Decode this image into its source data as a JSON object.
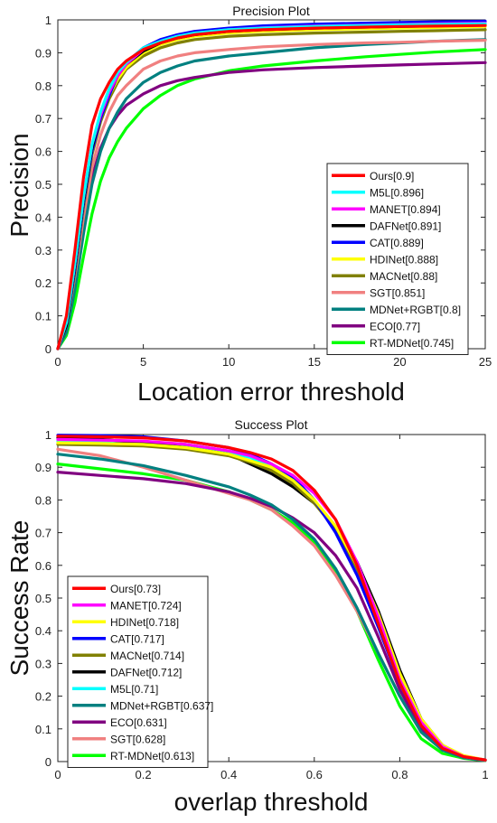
{
  "chart_data": [
    {
      "type": "line",
      "title": "Precision Plot",
      "xlabel": "Location error threshold",
      "ylabel": "Precision",
      "xlim": [
        0,
        25
      ],
      "ylim": [
        0,
        1
      ],
      "xticks": [
        0,
        5,
        10,
        15,
        20,
        25
      ],
      "yticks": [
        0,
        0.1,
        0.2,
        0.3,
        0.4,
        0.5,
        0.6,
        0.7,
        0.8,
        0.9,
        1
      ],
      "grid": false,
      "legend_position": "bottom-right",
      "x": [
        0,
        0.5,
        1,
        1.5,
        2,
        2.5,
        3,
        3.5,
        4,
        5,
        6,
        7,
        8,
        10,
        12,
        15,
        18,
        20,
        22,
        25
      ],
      "series": [
        {
          "name": "Ours[0.9]",
          "color": "#ff0000",
          "values": [
            0,
            0.1,
            0.3,
            0.52,
            0.68,
            0.76,
            0.81,
            0.85,
            0.875,
            0.91,
            0.93,
            0.945,
            0.955,
            0.965,
            0.97,
            0.975,
            0.978,
            0.98,
            0.981,
            0.983
          ]
        },
        {
          "name": "M5L[0.896]",
          "color": "#00ffff",
          "values": [
            0,
            0.08,
            0.26,
            0.46,
            0.62,
            0.72,
            0.79,
            0.84,
            0.87,
            0.915,
            0.935,
            0.95,
            0.96,
            0.97,
            0.975,
            0.98,
            0.983,
            0.985,
            0.986,
            0.988
          ]
        },
        {
          "name": "MANET[0.894]",
          "color": "#ff00ff",
          "values": [
            0,
            0.08,
            0.26,
            0.46,
            0.62,
            0.71,
            0.78,
            0.83,
            0.865,
            0.91,
            0.935,
            0.95,
            0.96,
            0.97,
            0.976,
            0.981,
            0.984,
            0.986,
            0.988,
            0.99
          ]
        },
        {
          "name": "DAFNet[0.891]",
          "color": "#000000",
          "values": [
            0,
            0.07,
            0.25,
            0.45,
            0.61,
            0.71,
            0.78,
            0.83,
            0.865,
            0.905,
            0.93,
            0.945,
            0.955,
            0.965,
            0.97,
            0.975,
            0.978,
            0.98,
            0.982,
            0.985
          ]
        },
        {
          "name": "CAT[0.889]",
          "color": "#0000ff",
          "values": [
            0,
            0.07,
            0.24,
            0.44,
            0.6,
            0.7,
            0.77,
            0.83,
            0.87,
            0.915,
            0.94,
            0.955,
            0.965,
            0.975,
            0.982,
            0.987,
            0.99,
            0.992,
            0.994,
            0.996
          ]
        },
        {
          "name": "HDINet[0.888]",
          "color": "#ffff00",
          "values": [
            0,
            0.07,
            0.24,
            0.44,
            0.6,
            0.7,
            0.77,
            0.82,
            0.855,
            0.9,
            0.925,
            0.94,
            0.95,
            0.96,
            0.965,
            0.97,
            0.973,
            0.975,
            0.977,
            0.98
          ]
        },
        {
          "name": "MACNet[0.88]",
          "color": "#808000",
          "values": [
            0,
            0.07,
            0.23,
            0.43,
            0.59,
            0.69,
            0.76,
            0.81,
            0.85,
            0.89,
            0.915,
            0.93,
            0.94,
            0.95,
            0.955,
            0.96,
            0.963,
            0.965,
            0.967,
            0.97
          ]
        },
        {
          "name": "SGT[0.851]",
          "color": "#f08080",
          "values": [
            0,
            0.07,
            0.22,
            0.4,
            0.55,
            0.65,
            0.72,
            0.77,
            0.8,
            0.85,
            0.875,
            0.89,
            0.9,
            0.91,
            0.918,
            0.925,
            0.93,
            0.932,
            0.935,
            0.938
          ]
        },
        {
          "name": "MDNet+RGBT[0.8]",
          "color": "#008080",
          "values": [
            0,
            0.05,
            0.18,
            0.35,
            0.5,
            0.6,
            0.67,
            0.72,
            0.76,
            0.81,
            0.84,
            0.86,
            0.875,
            0.89,
            0.9,
            0.915,
            0.925,
            0.93,
            0.935,
            0.94
          ]
        },
        {
          "name": "ECO[0.77]",
          "color": "#800080",
          "values": [
            0,
            0.06,
            0.2,
            0.37,
            0.52,
            0.61,
            0.67,
            0.71,
            0.74,
            0.775,
            0.8,
            0.815,
            0.825,
            0.84,
            0.848,
            0.855,
            0.86,
            0.863,
            0.866,
            0.87
          ]
        },
        {
          "name": "RT-MDNet[0.745]",
          "color": "#00ff00",
          "values": [
            0,
            0.04,
            0.14,
            0.28,
            0.41,
            0.51,
            0.58,
            0.63,
            0.67,
            0.73,
            0.77,
            0.8,
            0.82,
            0.845,
            0.86,
            0.875,
            0.888,
            0.895,
            0.902,
            0.91
          ]
        }
      ]
    },
    {
      "type": "line",
      "title": "Success Plot",
      "xlabel": "overlap threshold",
      "ylabel": "Success Rate",
      "xlim": [
        0,
        1
      ],
      "ylim": [
        0,
        1
      ],
      "xticks": [
        0,
        0.2,
        0.4,
        0.6,
        0.8,
        1
      ],
      "yticks": [
        0,
        0.1,
        0.2,
        0.3,
        0.4,
        0.5,
        0.6,
        0.7,
        0.8,
        0.9,
        1
      ],
      "grid": false,
      "legend_position": "bottom-left",
      "x": [
        0,
        0.1,
        0.2,
        0.3,
        0.4,
        0.45,
        0.5,
        0.55,
        0.6,
        0.65,
        0.7,
        0.75,
        0.8,
        0.85,
        0.9,
        0.95,
        1
      ],
      "series": [
        {
          "name": "Ours[0.73]",
          "color": "#ff0000",
          "values": [
            0.995,
            0.993,
            0.99,
            0.98,
            0.96,
            0.945,
            0.925,
            0.89,
            0.83,
            0.74,
            0.6,
            0.42,
            0.24,
            0.11,
            0.04,
            0.015,
            0.005
          ]
        },
        {
          "name": "MANET[0.724]",
          "color": "#ff00ff",
          "values": [
            0.985,
            0.983,
            0.98,
            0.97,
            0.95,
            0.935,
            0.91,
            0.875,
            0.82,
            0.74,
            0.61,
            0.44,
            0.25,
            0.12,
            0.045,
            0.015,
            0.005
          ]
        },
        {
          "name": "HDINet[0.718]",
          "color": "#ffff00",
          "values": [
            0.975,
            0.973,
            0.97,
            0.96,
            0.94,
            0.92,
            0.9,
            0.86,
            0.8,
            0.72,
            0.6,
            0.45,
            0.27,
            0.13,
            0.05,
            0.018,
            0.005
          ]
        },
        {
          "name": "CAT[0.717]",
          "color": "#0000ff",
          "values": [
            0.998,
            0.997,
            0.993,
            0.98,
            0.96,
            0.94,
            0.91,
            0.87,
            0.8,
            0.7,
            0.57,
            0.41,
            0.24,
            0.11,
            0.04,
            0.015,
            0.005
          ]
        },
        {
          "name": "MACNet[0.714]",
          "color": "#808000",
          "values": [
            0.97,
            0.968,
            0.965,
            0.955,
            0.935,
            0.915,
            0.89,
            0.85,
            0.79,
            0.71,
            0.59,
            0.43,
            0.26,
            0.12,
            0.045,
            0.015,
            0.005
          ]
        },
        {
          "name": "DAFNet[0.712]",
          "color": "#000000",
          "values": [
            0.99,
            0.985,
            0.975,
            0.96,
            0.94,
            0.91,
            0.88,
            0.84,
            0.79,
            0.72,
            0.61,
            0.46,
            0.28,
            0.13,
            0.05,
            0.016,
            0.005
          ]
        },
        {
          "name": "M5L[0.71]",
          "color": "#00ffff",
          "values": [
            0.98,
            0.978,
            0.975,
            0.965,
            0.945,
            0.93,
            0.9,
            0.86,
            0.8,
            0.71,
            0.58,
            0.42,
            0.25,
            0.11,
            0.04,
            0.015,
            0.005
          ]
        },
        {
          "name": "MDNet+RGBT[0.637]",
          "color": "#008080",
          "values": [
            0.94,
            0.925,
            0.905,
            0.875,
            0.84,
            0.815,
            0.785,
            0.74,
            0.68,
            0.59,
            0.47,
            0.33,
            0.2,
            0.09,
            0.035,
            0.012,
            0.004
          ]
        },
        {
          "name": "ECO[0.631]",
          "color": "#800080",
          "values": [
            0.885,
            0.875,
            0.865,
            0.85,
            0.825,
            0.805,
            0.78,
            0.745,
            0.7,
            0.63,
            0.53,
            0.38,
            0.22,
            0.1,
            0.035,
            0.012,
            0.004
          ]
        },
        {
          "name": "SGT[0.628]",
          "color": "#f08080",
          "values": [
            0.955,
            0.935,
            0.9,
            0.86,
            0.82,
            0.8,
            0.77,
            0.72,
            0.66,
            0.57,
            0.46,
            0.33,
            0.2,
            0.09,
            0.035,
            0.012,
            0.004
          ]
        },
        {
          "name": "RT-MDNet[0.613]",
          "color": "#00ff00",
          "values": [
            0.91,
            0.895,
            0.88,
            0.86,
            0.825,
            0.8,
            0.77,
            0.73,
            0.67,
            0.58,
            0.46,
            0.31,
            0.17,
            0.07,
            0.025,
            0.01,
            0.003
          ]
        }
      ]
    }
  ]
}
